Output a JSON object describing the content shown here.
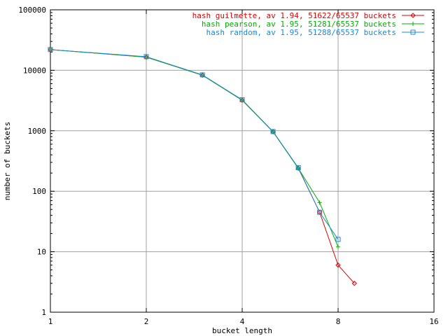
{
  "chart_data": {
    "type": "line",
    "title": "",
    "xlabel": "bucket length",
    "ylabel": "number of buckets",
    "xscale": "log2",
    "yscale": "log10",
    "xlim": [
      1,
      16
    ],
    "ylim": [
      1,
      100000
    ],
    "x_ticks": [
      1,
      2,
      4,
      8,
      16
    ],
    "x_tick_labels": [
      "1",
      "2",
      "4",
      "8",
      "16"
    ],
    "y_ticks": [
      1,
      10,
      100,
      1000,
      10000,
      100000
    ],
    "y_tick_labels": [
      "1",
      "10",
      "100",
      "1000",
      "10000",
      "100000"
    ],
    "grid": true,
    "legend_position": "top-right",
    "series": [
      {
        "name": "hash guilmette, av 1.94, 51622/65537 buckets",
        "color": "#e00000",
        "marker": "diamond",
        "points": [
          [
            1,
            22000
          ],
          [
            2,
            16500
          ],
          [
            3,
            8300
          ],
          [
            4,
            3200
          ],
          [
            5,
            960
          ],
          [
            6,
            240
          ],
          [
            7,
            45
          ],
          [
            8,
            6
          ],
          [
            9,
            3
          ]
        ]
      },
      {
        "name": "hash pearson, av 1.95, 51281/65537 buckets",
        "color": "#00b000",
        "marker": "plus",
        "points": [
          [
            1,
            22000
          ],
          [
            2,
            16500
          ],
          [
            3,
            8300
          ],
          [
            4,
            3200
          ],
          [
            5,
            960
          ],
          [
            6,
            240
          ],
          [
            7,
            65
          ],
          [
            8,
            12
          ]
        ]
      },
      {
        "name": "hash random, av 1.95, 51288/65537 buckets",
        "color": "#1a8ad8",
        "marker": "square",
        "points": [
          [
            1,
            22000
          ],
          [
            2,
            16800
          ],
          [
            3,
            8400
          ],
          [
            4,
            3250
          ],
          [
            5,
            970
          ],
          [
            6,
            245
          ],
          [
            7,
            45
          ],
          [
            8,
            16
          ]
        ]
      }
    ]
  }
}
